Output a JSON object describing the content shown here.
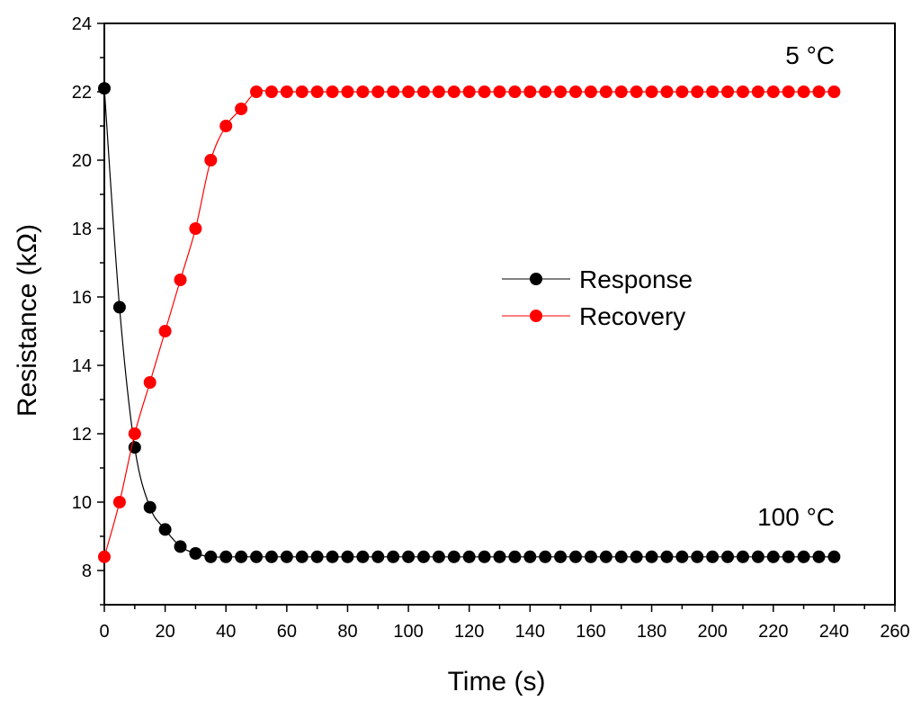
{
  "chart_data": {
    "type": "line",
    "title": "",
    "xlabel": "Time (s)",
    "ylabel": "Resistance (kΩ)",
    "xlim": [
      0,
      260
    ],
    "ylim": [
      7,
      24
    ],
    "xticks": [
      0,
      20,
      40,
      60,
      80,
      100,
      120,
      140,
      160,
      180,
      200,
      220,
      240,
      260
    ],
    "yticks": [
      8,
      10,
      12,
      14,
      16,
      18,
      20,
      22,
      24
    ],
    "grid": false,
    "legend_position": "center-right",
    "annotations": [
      {
        "text": "5 °C",
        "x": 240,
        "y": 23.05
      },
      {
        "text": "100 °C",
        "x": 240,
        "y": 9.55
      }
    ],
    "series": [
      {
        "name": "Response",
        "color": "#000000",
        "x": [
          0,
          5,
          10,
          15,
          20,
          25,
          30,
          35,
          40,
          45,
          50,
          55,
          60,
          65,
          70,
          75,
          80,
          85,
          90,
          95,
          100,
          105,
          110,
          115,
          120,
          125,
          130,
          135,
          140,
          145,
          150,
          155,
          160,
          165,
          170,
          175,
          180,
          185,
          190,
          195,
          200,
          205,
          210,
          215,
          220,
          225,
          230,
          235,
          240
        ],
        "values": [
          22.1,
          15.7,
          11.6,
          9.85,
          9.2,
          8.7,
          8.5,
          8.4,
          8.4,
          8.4,
          8.4,
          8.4,
          8.4,
          8.4,
          8.4,
          8.4,
          8.4,
          8.4,
          8.4,
          8.4,
          8.4,
          8.4,
          8.4,
          8.4,
          8.4,
          8.4,
          8.4,
          8.4,
          8.4,
          8.4,
          8.4,
          8.4,
          8.4,
          8.4,
          8.4,
          8.4,
          8.4,
          8.4,
          8.4,
          8.4,
          8.4,
          8.4,
          8.4,
          8.4,
          8.4,
          8.4,
          8.4,
          8.4,
          8.4
        ]
      },
      {
        "name": "Recovery",
        "color": "#ff0000",
        "x": [
          0,
          5,
          10,
          15,
          20,
          25,
          30,
          35,
          40,
          45,
          50,
          55,
          60,
          65,
          70,
          75,
          80,
          85,
          90,
          95,
          100,
          105,
          110,
          115,
          120,
          125,
          130,
          135,
          140,
          145,
          150,
          155,
          160,
          165,
          170,
          175,
          180,
          185,
          190,
          195,
          200,
          205,
          210,
          215,
          220,
          225,
          230,
          235,
          240
        ],
        "values": [
          8.4,
          10.0,
          12.0,
          13.5,
          15.0,
          16.5,
          18.0,
          20.0,
          21.0,
          21.5,
          22.0,
          22.0,
          22.0,
          22.0,
          22.0,
          22.0,
          22.0,
          22.0,
          22.0,
          22.0,
          22.0,
          22.0,
          22.0,
          22.0,
          22.0,
          22.0,
          22.0,
          22.0,
          22.0,
          22.0,
          22.0,
          22.0,
          22.0,
          22.0,
          22.0,
          22.0,
          22.0,
          22.0,
          22.0,
          22.0,
          22.0,
          22.0,
          22.0,
          22.0,
          22.0,
          22.0,
          22.0,
          22.0,
          22.0
        ]
      }
    ]
  }
}
